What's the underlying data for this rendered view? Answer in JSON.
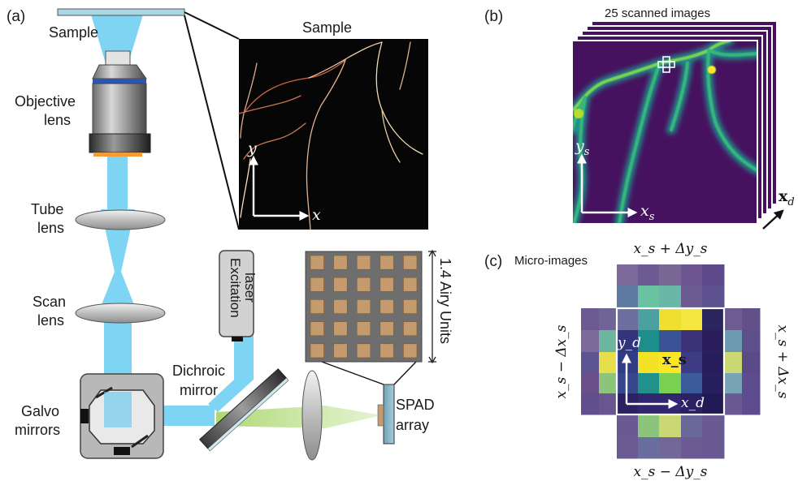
{
  "panel_a": {
    "tag": "(a)",
    "labels": {
      "sample_top": "Sample",
      "objective_1": "Objective",
      "objective_2": "lens",
      "tube_1": "Tube",
      "tube_2": "lens",
      "scan_1": "Scan",
      "scan_2": "lens",
      "galvo_1": "Galvo",
      "galvo_2": "mirrors",
      "dichroic_1": "Dichroic",
      "dichroic_2": "mirror",
      "laser_1": "Excitation",
      "laser_2": "laser",
      "spad_1": "SPAD",
      "spad_2": "array",
      "airy": "1.4 Airy Units"
    },
    "inset": {
      "title": "Sample",
      "axis_x": "x",
      "axis_y": "y"
    }
  },
  "panel_b": {
    "tag": "(b)",
    "title": "25 scanned images",
    "axis_x": "x",
    "axis_x_sub": "s",
    "axis_y": "y",
    "axis_y_sub": "s",
    "axis_d": "x",
    "axis_d_sub": "d"
  },
  "panel_c": {
    "tag": "(c)",
    "title": "Micro-images",
    "top": "x_s + Δy_s",
    "bottom": "x_s − Δy_s",
    "left": "x_s − Δx_s",
    "right": "x_s + Δx_s",
    "center": "x_s",
    "axis_x": "x_d",
    "axis_y": "y_d"
  },
  "colors": {
    "beam": "#5bc8f0",
    "green_beam": "#a8d66a",
    "viridis_dark": "#46115f",
    "viridis_mid": "#21918c",
    "viridis_bright": "#fde725",
    "spad_pixel": "#c59a6c",
    "spad_grid": "#6e6e6e"
  }
}
